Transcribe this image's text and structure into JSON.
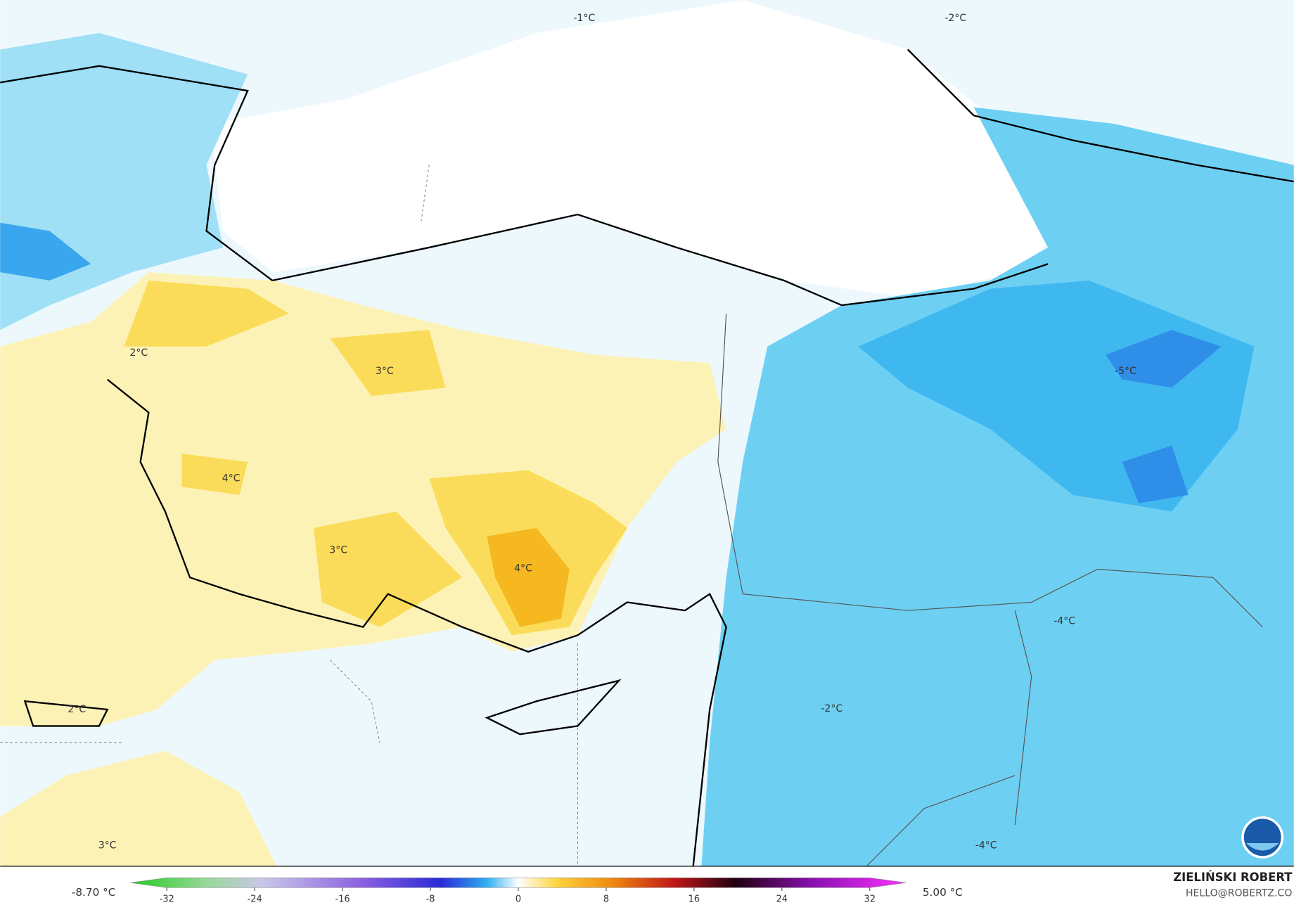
{
  "contour_labels": [
    "-1°C",
    "-2°C",
    "2°C",
    "3°C",
    "-5°C",
    "4°C",
    "3°C",
    "4°C",
    "-4°C",
    "2°C",
    "-2°C",
    "3°C",
    "-4°C"
  ],
  "colorbar": {
    "min_label": "-8.70 °C",
    "max_label": "5.00 °C",
    "lim": [
      -32,
      32
    ],
    "ticks": [
      -32,
      -24,
      -16,
      -8,
      0,
      8,
      16,
      24,
      32
    ]
  },
  "credit": {
    "name": "ZIELIŃSKI ROBERT",
    "email": "HELLO@ROBERTZ.CO"
  }
}
